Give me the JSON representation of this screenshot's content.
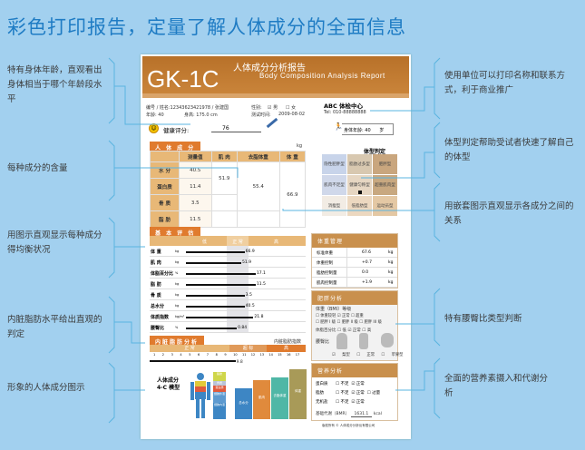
{
  "headline": "彩色打印报告，定量了解人体成分的全面信息",
  "left_notes": [
    "特有身体年龄，直观看出身体相当于哪个年龄段水平",
    "每种成分的含量",
    "用图示直观显示每种成分得均衡状况",
    "内脏脂肪水平给出直观的判定",
    "形象的人体成分图示"
  ],
  "right_notes": [
    "使用单位可以打印名称和联系方式，利于商业推广",
    "体型判定帮助受试者快速了解自己的体型",
    "用嵌套图示直观显示各成分之间的关系",
    "特有腰臀比类型判断",
    "全面的营养素摄入和代谢分析"
  ],
  "report": {
    "model": "GK-1C",
    "title_cn": "人体成分分析报告",
    "title_en": "Body Composition Analysis Report",
    "info1": "编号 / 姓名:12343623421978 / 张建国",
    "gender_label": "性别:",
    "gender_male": "☑ 男",
    "gender_female": "☐ 女",
    "info2_age": "年龄: 40",
    "info2_height": "身高:   175.0  cm",
    "info2_time": "测试时间:",
    "info2_date": "2009-08-02",
    "center_name": "ABC 体检中心",
    "center_tel": "Tel: 010-88888888",
    "score_label": "健康评分:",
    "score": "76",
    "body_age_label": "身体年龄: 40",
    "body_age_unit": "岁",
    "composition": {
      "tab": "人 体 成 分",
      "unit": "kg",
      "headers": [
        "测量值",
        "肌 肉",
        "去脂体重",
        "体 重"
      ],
      "rows": [
        {
          "label": "水 分",
          "value": "40.5"
        },
        {
          "label": "蛋白质",
          "value": "11.4"
        },
        {
          "label": "骨 质",
          "value": "3.5"
        },
        {
          "label": "脂 肪",
          "value": "11.5"
        }
      ],
      "muscle": "51.9",
      "lean_mass": "55.4",
      "weight": "66.9"
    },
    "body_type": {
      "title": "体型判定",
      "cells": [
        "隐性肥胖型",
        "脂肪过多型",
        "肥胖型",
        "肌肉不足型",
        "健康匀称型",
        "超重肌肉型",
        "消瘦型",
        "低脂肪型",
        "运动员型"
      ],
      "selected": "健康匀称型"
    },
    "basic": {
      "tab": "基 本 评 估",
      "scale": [
        "低",
        "正 常",
        "高"
      ],
      "rows": [
        {
          "label": "体 重",
          "unit": "kg",
          "value": "66.9",
          "level": 0.53
        },
        {
          "label": "肌 肉",
          "unit": "kg",
          "value": "51.9",
          "level": 0.5
        },
        {
          "label": "体脂百分比",
          "unit": "%",
          "value": "17.1",
          "level": 0.63
        },
        {
          "label": "脂 肪",
          "unit": "kg",
          "value": "11.5",
          "level": 0.63
        },
        {
          "label": "骨 质",
          "unit": "kg",
          "value": "3.5",
          "level": 0.53
        },
        {
          "label": "总水分",
          "unit": "kg",
          "value": "40.5",
          "level": 0.53
        },
        {
          "label": "体质指数",
          "unit": "kg/m²",
          "value": "21.8",
          "level": 0.61
        },
        {
          "label": "腰臀比",
          "unit": "%",
          "value": "0.84",
          "level": 0.46
        }
      ]
    },
    "visceral": {
      "tab": "内脏脂肪分析",
      "index_label": "内脏脂肪指数",
      "zones": [
        "正 常",
        "超 标",
        "高"
      ],
      "ticks": [
        "1",
        "2",
        "3",
        "4",
        "5",
        "6",
        "7",
        "8",
        "9",
        "10",
        "11",
        "12",
        "13",
        "14",
        "15",
        "16",
        "17"
      ],
      "value": "9.8",
      "level": 0.55
    },
    "weight_mgmt": {
      "title": "体重管理",
      "rows": [
        {
          "label": "标准体重",
          "value": "67.6",
          "unit": "kg"
        },
        {
          "label": "体重控制",
          "value": "+0.7",
          "unit": "kg"
        },
        {
          "label": "脂肪控制量",
          "value": "0.0",
          "unit": "kg"
        },
        {
          "label": "肌肉控制量",
          "value": "+1.9",
          "unit": "kg"
        }
      ]
    },
    "obesity": {
      "title": "肥胖分析",
      "bmi_label": "体重（BMI）等级",
      "bmi_opts": [
        "☐ 体重较轻",
        "☑ 正常",
        "☐ 超重",
        "☐ 肥胖 I 级",
        "☐ 肥胖 II 级",
        "☐ 肥胖 III 级"
      ],
      "fat_label": "体脂百分比",
      "fat_opts": [
        "☐ 低",
        "☑ 正常",
        "☐ 高"
      ],
      "whr_label": "腰臀比",
      "whr_opts": [
        "☑ 梨型",
        "☐ 正常",
        "☐ 苹果型"
      ]
    },
    "nutrition": {
      "title": "营养分析",
      "rows": [
        {
          "label": "蛋白质",
          "opts": "☐ 不足  ☑ 正常"
        },
        {
          "label": "脂肪",
          "opts": "☐ 不足  ☑ 正常  ☐ 过量"
        },
        {
          "label": "无机盐",
          "opts": "☐ 不足  ☑ 正常"
        }
      ],
      "bmr_label": "基础代谢（BMR）",
      "bmr_value": "1631.1",
      "bmr_unit": "kcal"
    },
    "model4c": {
      "label": "人体成分\n4-C 模型",
      "stack": [
        "脂肪",
        "骨质",
        "蛋白质",
        "细胞外液",
        "细胞内液"
      ],
      "bars": [
        {
          "label": "总水分",
          "value": 40.5,
          "color": "#3d86c4"
        },
        {
          "label": "肌肉",
          "value": 51.9,
          "color": "#e08a3c"
        },
        {
          "label": "去脂体重",
          "value": 55.4,
          "color": "#4fb7a6"
        },
        {
          "label": "体重",
          "value": 66.9,
          "color": "#a89a58"
        }
      ]
    },
    "footer": "版权所有 © 人体成分分析仪有限公司"
  },
  "colors": {
    "background": "#a2d0ef",
    "headline": "#1f7cc4",
    "header": "#b87129",
    "tab": "#e07b2e",
    "line": "#5ab4e0"
  }
}
